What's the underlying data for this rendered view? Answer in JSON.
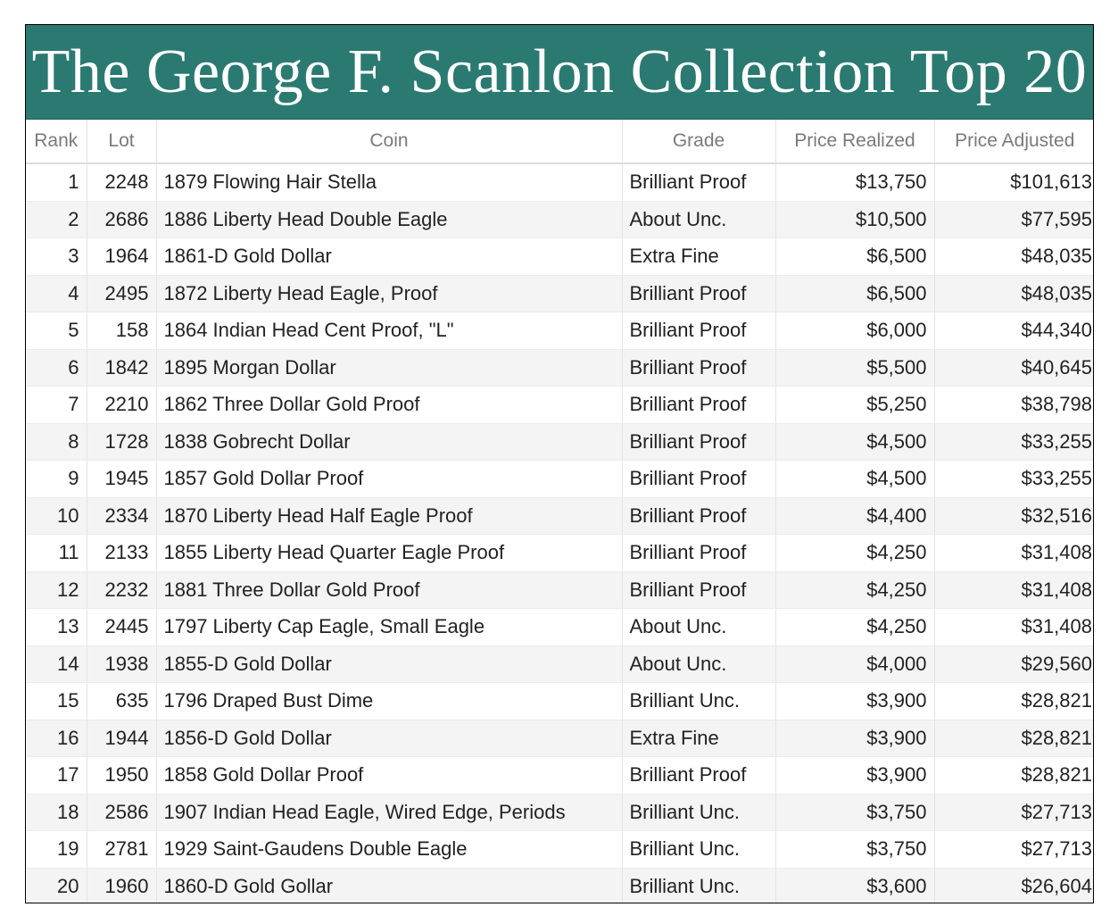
{
  "title": "The George F. Scanlon Collection Top 20",
  "columns": {
    "rank": "Rank",
    "lot": "Lot",
    "coin": "Coin",
    "grade": "Grade",
    "price_realized": "Price Realized",
    "price_adjusted": "Price Adjusted"
  },
  "rows": [
    {
      "rank": "1",
      "lot": "2248",
      "coin": "1879 Flowing Hair Stella",
      "grade": "Brilliant Proof",
      "price_realized": "$13,750",
      "price_adjusted": "$101,613"
    },
    {
      "rank": "2",
      "lot": "2686",
      "coin": "1886 Liberty Head Double Eagle",
      "grade": "About Unc.",
      "price_realized": "$10,500",
      "price_adjusted": "$77,595"
    },
    {
      "rank": "3",
      "lot": "1964",
      "coin": "1861-D Gold Dollar",
      "grade": "Extra Fine",
      "price_realized": "$6,500",
      "price_adjusted": "$48,035"
    },
    {
      "rank": "4",
      "lot": "2495",
      "coin": "1872 Liberty Head Eagle, Proof",
      "grade": "Brilliant Proof",
      "price_realized": "$6,500",
      "price_adjusted": "$48,035"
    },
    {
      "rank": "5",
      "lot": "158",
      "coin": "1864 Indian Head Cent Proof, \"L\"",
      "grade": "Brilliant Proof",
      "price_realized": "$6,000",
      "price_adjusted": "$44,340"
    },
    {
      "rank": "6",
      "lot": "1842",
      "coin": "1895 Morgan Dollar",
      "grade": "Brilliant Proof",
      "price_realized": "$5,500",
      "price_adjusted": "$40,645"
    },
    {
      "rank": "7",
      "lot": "2210",
      "coin": "1862 Three Dollar Gold Proof",
      "grade": "Brilliant Proof",
      "price_realized": "$5,250",
      "price_adjusted": "$38,798"
    },
    {
      "rank": "8",
      "lot": "1728",
      "coin": "1838 Gobrecht Dollar",
      "grade": "Brilliant Proof",
      "price_realized": "$4,500",
      "price_adjusted": "$33,255"
    },
    {
      "rank": "9",
      "lot": "1945",
      "coin": "1857 Gold Dollar Proof",
      "grade": "Brilliant Proof",
      "price_realized": "$4,500",
      "price_adjusted": "$33,255"
    },
    {
      "rank": "10",
      "lot": "2334",
      "coin": "1870 Liberty Head Half Eagle Proof",
      "grade": "Brilliant Proof",
      "price_realized": "$4,400",
      "price_adjusted": "$32,516"
    },
    {
      "rank": "11",
      "lot": "2133",
      "coin": "1855 Liberty Head Quarter Eagle Proof",
      "grade": "Brilliant Proof",
      "price_realized": "$4,250",
      "price_adjusted": "$31,408"
    },
    {
      "rank": "12",
      "lot": "2232",
      "coin": "1881 Three Dollar Gold Proof",
      "grade": "Brilliant Proof",
      "price_realized": "$4,250",
      "price_adjusted": "$31,408"
    },
    {
      "rank": "13",
      "lot": "2445",
      "coin": "1797 Liberty Cap Eagle, Small Eagle",
      "grade": "About Unc.",
      "price_realized": "$4,250",
      "price_adjusted": "$31,408"
    },
    {
      "rank": "14",
      "lot": "1938",
      "coin": "1855-D Gold Dollar",
      "grade": "About Unc.",
      "price_realized": "$4,000",
      "price_adjusted": "$29,560"
    },
    {
      "rank": "15",
      "lot": "635",
      "coin": "1796 Draped Bust Dime",
      "grade": "Brilliant Unc.",
      "price_realized": "$3,900",
      "price_adjusted": "$28,821"
    },
    {
      "rank": "16",
      "lot": "1944",
      "coin": "1856-D Gold Dollar",
      "grade": "Extra Fine",
      "price_realized": "$3,900",
      "price_adjusted": "$28,821"
    },
    {
      "rank": "17",
      "lot": "1950",
      "coin": "1858 Gold Dollar Proof",
      "grade": "Brilliant Proof",
      "price_realized": "$3,900",
      "price_adjusted": "$28,821"
    },
    {
      "rank": "18",
      "lot": "2586",
      "coin": "1907 Indian Head Eagle, Wired Edge, Periods",
      "grade": "Brilliant Unc.",
      "price_realized": "$3,750",
      "price_adjusted": "$27,713"
    },
    {
      "rank": "19",
      "lot": "2781",
      "coin": "1929 Saint-Gaudens Double Eagle",
      "grade": "Brilliant Unc.",
      "price_realized": "$3,750",
      "price_adjusted": "$27,713"
    },
    {
      "rank": "20",
      "lot": "1960",
      "coin": "1860-D Gold Gollar",
      "grade": "Brilliant Unc.",
      "price_realized": "$3,600",
      "price_adjusted": "$26,604"
    }
  ]
}
